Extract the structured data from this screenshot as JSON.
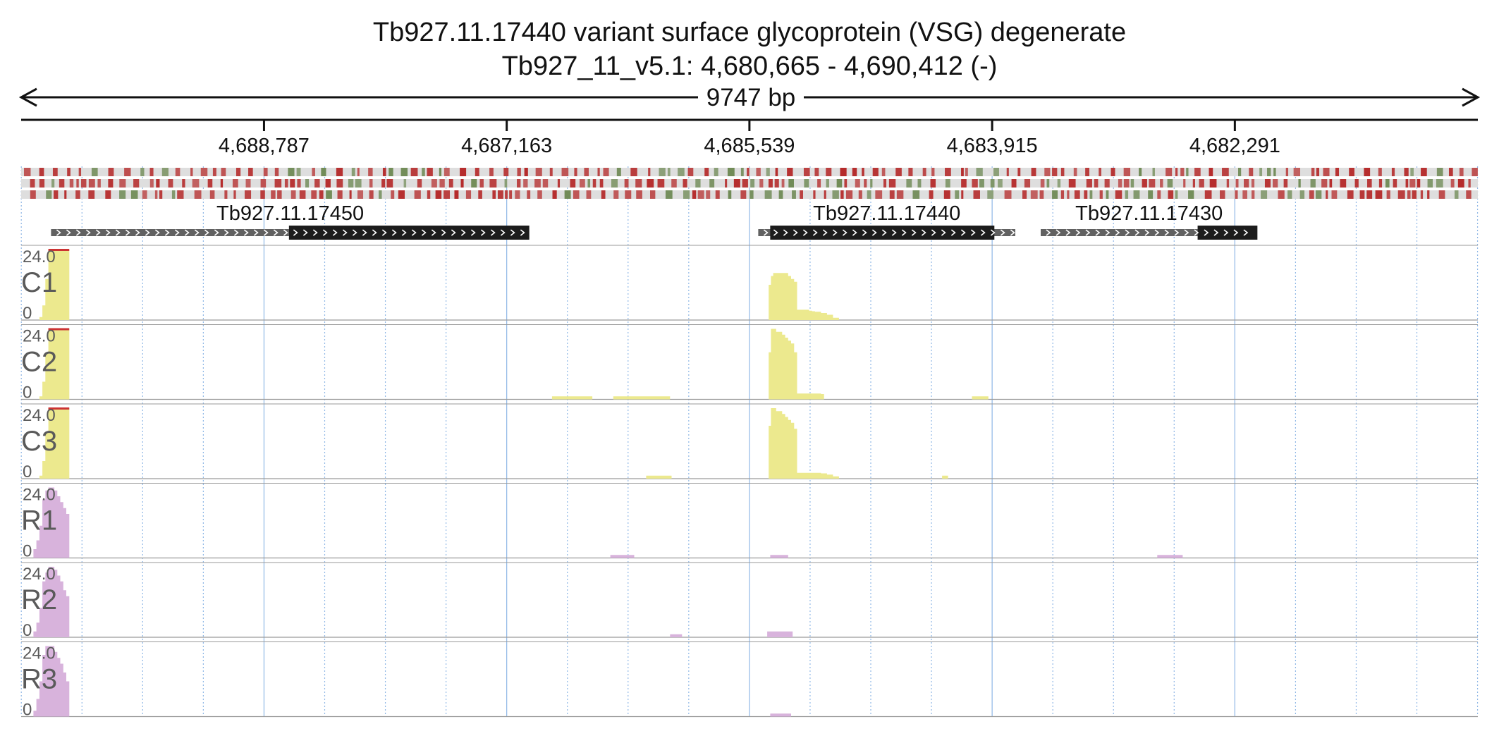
{
  "header": {
    "title": "Tb927.11.17440  variant surface glycoprotein (VSG)  degenerate",
    "locus": "Tb927_11_v5.1: 4,680,665 - 4,690,412 (-)",
    "span_label": "9747 bp"
  },
  "colors": {
    "text": "#111111",
    "track_label": "#5a5a5a",
    "coverage_c": "#ece98e",
    "coverage_r": "#d8b3dc",
    "clip_mark": "#cc3333",
    "gene_thick": "#1c1c1c",
    "gene_thin": "#616161",
    "grid": "#8fb7e6",
    "variant_red": "#b52b2b",
    "variant_green": "#6f8a55",
    "variant_bg": "#dedede"
  },
  "chart_data": {
    "type": "area",
    "x_axis": {
      "start": 4690412,
      "end": 4680665,
      "strand": "-",
      "reversed": true,
      "ticks": [
        4688787,
        4687163,
        4685539,
        4683915,
        4682291
      ],
      "tick_labels": [
        "4,688,787",
        "4,687,163",
        "4,685,539",
        "4,683,915",
        "4,682,291"
      ]
    },
    "genes": [
      {
        "name": "Tb927.11.17450",
        "start": 4690212,
        "end": 4687012,
        "utr_end": 4688620
      },
      {
        "name": "Tb927.11.17440",
        "start": 4685480,
        "end": 4683760,
        "utr_end": null,
        "cds_start": 4685400,
        "cds_end": 4683900
      },
      {
        "name": "Tb927.11.17430",
        "start": 4683590,
        "end": 4682140,
        "utr_end": 4682540
      }
    ],
    "variant_rows": 3,
    "tracks": [
      {
        "name": "C1",
        "max": "24.0",
        "min": "0",
        "color": "coverage_c",
        "clipped_left": true,
        "x": [
          4690290,
          4690270,
          4690250,
          4690230,
          4690210,
          4690190,
          4690170,
          4690150,
          4690130,
          4690110,
          4690090,
          4685425,
          4685410,
          4685395,
          4685380,
          4685360,
          4685340,
          4685320,
          4685300,
          4685280,
          4685260,
          4685240,
          4685220,
          4685200,
          4685180,
          4685160,
          4685140,
          4685120,
          4685100,
          4685060,
          4685020,
          4684980,
          4684940
        ],
        "values": [
          1,
          5,
          14,
          24,
          24,
          24,
          24,
          24,
          24,
          24,
          0,
          0,
          12,
          15,
          16,
          16,
          16,
          16,
          16,
          15,
          14,
          13,
          3.5,
          3.5,
          3.5,
          3.5,
          3.2,
          3,
          2.8,
          2.4,
          1.8,
          0.8,
          0
        ]
      },
      {
        "name": "C2",
        "max": "24.0",
        "min": "0",
        "color": "coverage_c",
        "clipped_left": true,
        "x": [
          4690290,
          4690270,
          4690250,
          4690230,
          4690210,
          4690190,
          4690170,
          4690150,
          4690130,
          4690110,
          4690090,
          4686870,
          4686860,
          4686600,
          4686590,
          4686460,
          4686450,
          4686080,
          4686070,
          4685425,
          4685410,
          4685395,
          4685380,
          4685360,
          4685340,
          4685320,
          4685300,
          4685280,
          4685260,
          4685240,
          4685220,
          4685200,
          4685180,
          4685160,
          4685140,
          4685120,
          4685100,
          4685060,
          4685040,
          4684060,
          4684050,
          4683950,
          4683940
        ],
        "values": [
          1,
          6,
          16,
          24,
          24,
          24,
          24,
          24,
          24,
          24,
          0,
          0,
          1,
          1,
          0,
          0,
          1,
          1,
          0,
          0,
          16,
          24,
          24,
          23,
          23,
          22,
          21,
          20,
          19,
          16,
          2,
          2,
          2,
          2,
          2,
          2,
          2,
          1.8,
          0,
          0,
          1,
          1,
          0
        ]
      },
      {
        "name": "C3",
        "max": "24.0",
        "min": "0",
        "color": "coverage_c",
        "clipped_left": true,
        "x": [
          4690290,
          4690270,
          4690250,
          4690230,
          4690210,
          4690190,
          4690170,
          4690150,
          4690130,
          4690110,
          4690090,
          4686240,
          4686230,
          4686070,
          4686060,
          4685425,
          4685410,
          4685395,
          4685380,
          4685360,
          4685340,
          4685320,
          4685300,
          4685280,
          4685260,
          4685240,
          4685220,
          4685200,
          4685180,
          4685160,
          4685140,
          4685120,
          4685100,
          4685060,
          4685020,
          4684980,
          4684940,
          4684260,
          4684250,
          4684220,
          4684210
        ],
        "values": [
          1,
          6,
          16,
          24,
          24,
          24,
          24,
          24,
          24,
          24,
          0,
          0,
          1,
          1,
          0,
          0,
          18,
          24,
          24,
          23,
          23,
          22,
          21,
          20,
          19,
          17,
          2,
          2,
          2,
          2,
          2,
          2,
          2,
          1.8,
          1.4,
          0.8,
          0,
          0,
          1,
          1,
          0
        ]
      },
      {
        "name": "R1",
        "max": "24.0",
        "min": "0",
        "color": "coverage_r",
        "clipped_left": false,
        "x": [
          4690330,
          4690310,
          4690290,
          4690270,
          4690250,
          4690230,
          4690210,
          4690190,
          4690170,
          4690150,
          4690130,
          4690110,
          4690090,
          4686480,
          4686470,
          4686320,
          4686310,
          4685410,
          4685400,
          4685290,
          4685280,
          4682820,
          4682810,
          4682650,
          4682640
        ],
        "values": [
          3,
          6,
          11,
          20,
          23,
          24,
          24,
          23,
          21,
          19,
          17,
          15,
          0,
          0,
          1,
          1,
          0,
          0,
          1,
          1,
          0,
          0,
          1,
          1,
          0
        ]
      },
      {
        "name": "R2",
        "max": "24.0",
        "min": "0",
        "color": "coverage_r",
        "clipped_left": false,
        "x": [
          4690330,
          4690310,
          4690290,
          4690270,
          4690250,
          4690230,
          4690210,
          4690190,
          4690170,
          4690150,
          4690130,
          4690110,
          4690090,
          4686080,
          4686070,
          4686000,
          4685990,
          4685430,
          4685420,
          4685260,
          4685250
        ],
        "values": [
          2,
          5,
          10,
          19,
          22,
          24,
          24,
          23,
          21,
          19,
          16,
          14,
          0,
          0,
          1,
          1,
          0,
          0,
          2,
          2,
          0
        ]
      },
      {
        "name": "R3",
        "max": "24.0",
        "min": "0",
        "color": "coverage_r",
        "clipped_left": false,
        "x": [
          4690330,
          4690310,
          4690290,
          4690270,
          4690250,
          4690230,
          4690210,
          4690190,
          4690170,
          4690150,
          4690130,
          4690110,
          4690090,
          4685410,
          4685400,
          4685270,
          4685260
        ],
        "values": [
          2,
          6,
          12,
          21,
          24,
          24,
          24,
          22,
          20,
          18,
          15,
          12,
          0,
          0,
          1,
          1,
          0
        ]
      }
    ]
  }
}
